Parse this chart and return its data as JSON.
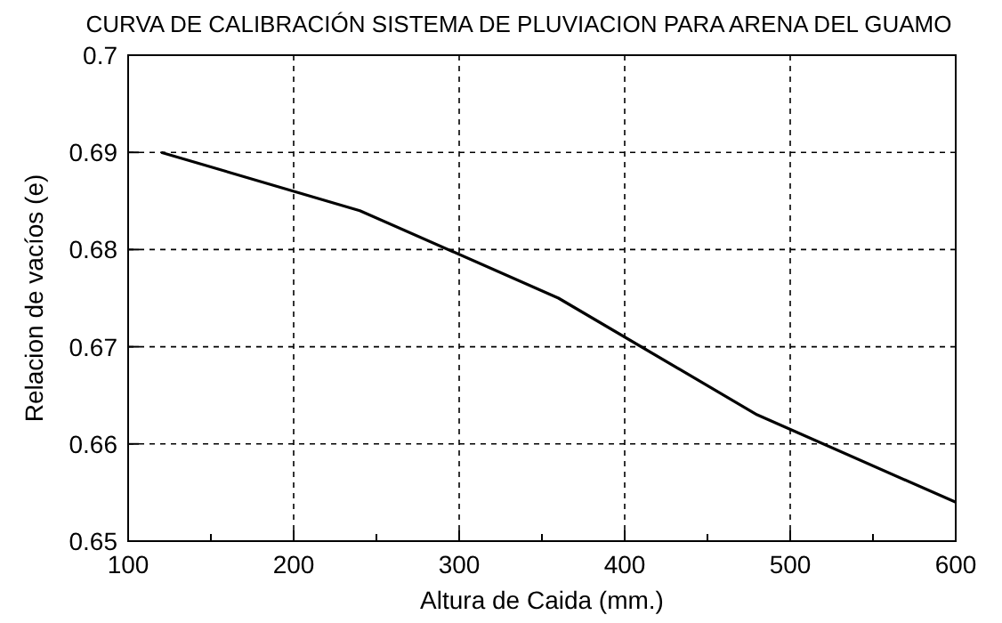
{
  "chart_data": {
    "type": "line",
    "title": "CURVA DE CALIBRACIÓN SISTEMA DE PLUVIACION PARA ARENA DEL GUAMO",
    "xlabel": "Altura de Caida (mm.)",
    "ylabel": "Relacion de vacíos (e)",
    "x": [
      120,
      240,
      360,
      480,
      600
    ],
    "series": [
      {
        "color": "#000000",
        "values": [
          0.69,
          0.684,
          0.675,
          0.663,
          0.654
        ]
      }
    ],
    "xlim": [
      100,
      600
    ],
    "xticks": [
      100,
      {
        "value": 150,
        "label": null
      },
      200,
      {
        "value": 250,
        "label": null
      },
      300,
      {
        "value": 350,
        "label": null
      },
      400,
      {
        "value": 450,
        "label": null
      },
      500,
      {
        "value": 550,
        "label": null
      },
      600
    ],
    "ylim": [
      0.65,
      0.7
    ],
    "yticks": [
      0.65,
      0.66,
      0.67,
      0.68,
      0.69,
      0.7
    ],
    "grid": true,
    "marker": "none",
    "line_style": "solid"
  }
}
